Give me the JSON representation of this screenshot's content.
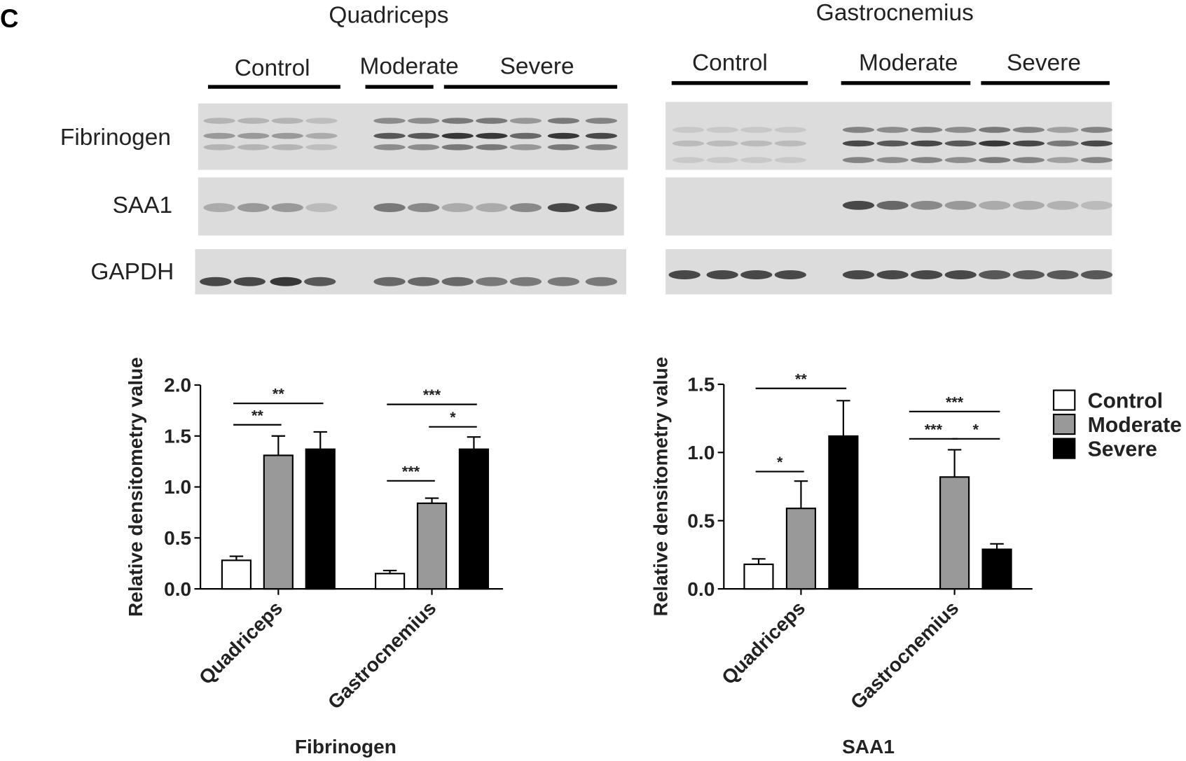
{
  "panel_label": "C",
  "blots": [
    {
      "title": "Quadriceps",
      "groups": [
        "Control",
        "Moderate",
        "Severe"
      ],
      "rows": [
        "Fibrinogen",
        "SAA1",
        "GAPDH"
      ]
    },
    {
      "title": "Gastrocnemius",
      "groups": [
        "Control",
        "Moderate",
        "Severe"
      ]
    }
  ],
  "chart_data": [
    {
      "type": "bar",
      "x_title": "Fibrinogen",
      "y_label": "Relative densitometry value",
      "categories": [
        "Quadriceps",
        "Gastrocnemius"
      ],
      "series": [
        {
          "name": "Control",
          "color": "#ffffff",
          "values": [
            0.28,
            0.15
          ],
          "errors": [
            0.04,
            0.03
          ]
        },
        {
          "name": "Moderate",
          "color": "#999999",
          "values": [
            1.31,
            0.84
          ],
          "errors": [
            0.19,
            0.05
          ]
        },
        {
          "name": "Severe",
          "color": "#000000",
          "values": [
            1.37,
            1.37
          ],
          "errors": [
            0.17,
            0.12
          ]
        }
      ],
      "ylim": [
        0,
        2
      ],
      "yticks": [
        {
          "value": 0,
          "label": "0.0"
        },
        0.5,
        {
          "value": 1,
          "label": "1.0"
        },
        1.5,
        {
          "value": 2,
          "label": "2.0"
        }
      ],
      "annotations": [
        {
          "label": "**",
          "category": 0,
          "between": [
            0,
            1
          ],
          "y": 1.61
        },
        {
          "label": "**",
          "category": 0,
          "between": [
            0,
            2
          ],
          "y": 1.82
        },
        {
          "label": "***",
          "category": 1,
          "between": [
            0,
            1
          ],
          "y": 1.06
        },
        {
          "label": "*",
          "category": 1,
          "between": [
            1,
            2
          ],
          "y": 1.59
        },
        {
          "label": "***",
          "category": 1,
          "between": [
            0,
            2
          ],
          "y": 1.81
        }
      ]
    },
    {
      "type": "bar",
      "x_title": "SAA1",
      "y_label": "Relative densitometry value",
      "categories": [
        "Quadriceps",
        "Gastrocnemius"
      ],
      "series": [
        {
          "name": "Control",
          "color": "#ffffff",
          "values": [
            0.18,
            null
          ],
          "errors": [
            0.04,
            null
          ]
        },
        {
          "name": "Moderate",
          "color": "#999999",
          "values": [
            0.59,
            0.82
          ],
          "errors": [
            0.2,
            0.2
          ]
        },
        {
          "name": "Severe",
          "color": "#000000",
          "values": [
            1.12,
            0.29
          ],
          "errors": [
            0.26,
            0.04
          ]
        }
      ],
      "ylim": [
        0,
        1.5
      ],
      "yticks": [
        {
          "value": 0,
          "label": "0.0"
        },
        0.5,
        {
          "value": 1,
          "label": "1.0"
        },
        1.5
      ],
      "legend": "right",
      "annotations": [
        {
          "label": "*",
          "category": 0,
          "between": [
            0,
            1
          ],
          "y": 0.86
        },
        {
          "label": "**",
          "category": 0,
          "between": [
            0,
            2
          ],
          "y": 1.47
        },
        {
          "label": "***",
          "category": 1,
          "between": [
            0,
            1
          ],
          "y": 1.1
        },
        {
          "label": "*",
          "category": 1,
          "between": [
            1,
            2
          ],
          "y": 1.1
        },
        {
          "label": "***",
          "category": 1,
          "between": [
            0,
            2
          ],
          "y": 1.3
        }
      ]
    }
  ]
}
